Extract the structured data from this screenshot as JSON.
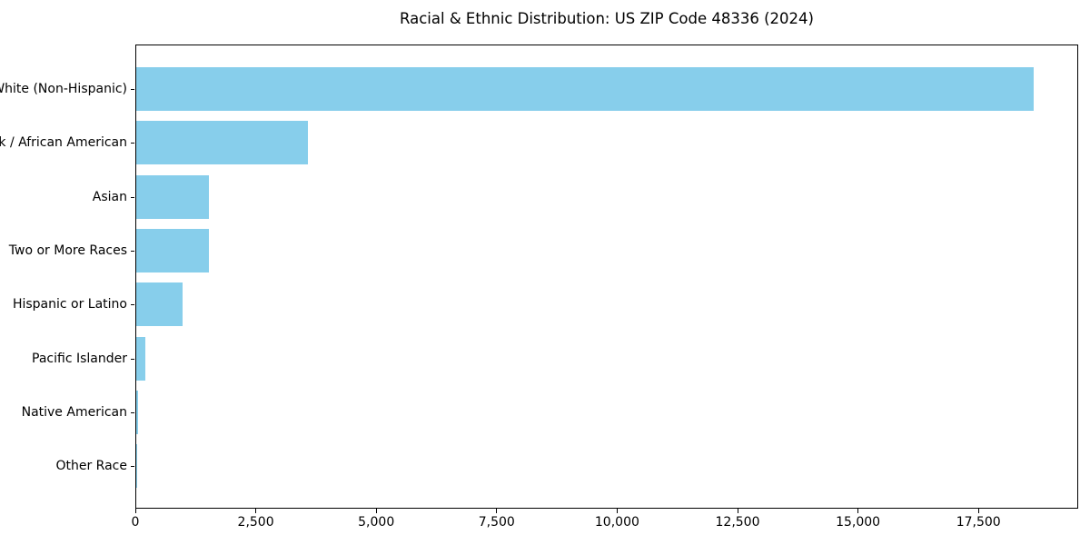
{
  "chart_data": {
    "type": "bar",
    "orientation": "horizontal",
    "title": "Racial & Ethnic Distribution: US ZIP Code 48336 (2024)",
    "categories": [
      "White (Non-Hispanic)",
      "Black / African American",
      "Asian",
      "Two or More Races",
      "Hispanic or Latino",
      "Pacific Islander",
      "Native American",
      "Other Race"
    ],
    "values": [
      18620,
      3560,
      1510,
      1500,
      960,
      190,
      30,
      10
    ],
    "xlabel": "",
    "ylabel": "",
    "xlim": [
      0,
      19570
    ],
    "xticks": {
      "values": [
        0,
        2500,
        5000,
        7500,
        10000,
        12500,
        15000,
        17500
      ],
      "labels": [
        "0",
        "2,500",
        "5,000",
        "7,500",
        "10,000",
        "12,500",
        "15,000",
        "17,500"
      ]
    },
    "grid": false,
    "legend": null,
    "bar_color": "#87CEEB",
    "axis_color": "#000000",
    "text_color": "#000000",
    "background": "#ffffff"
  }
}
